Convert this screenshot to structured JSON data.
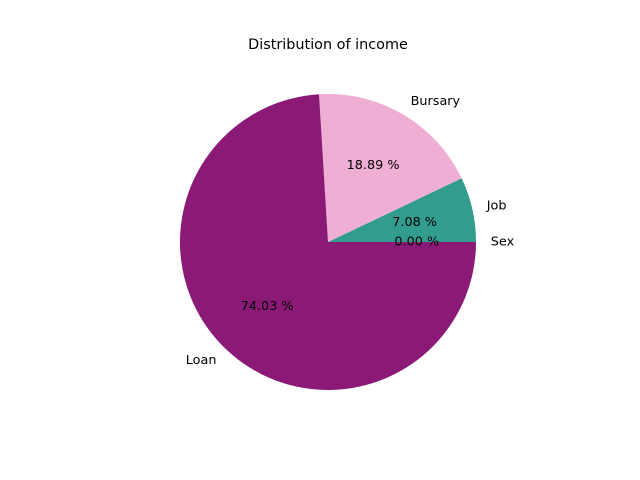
{
  "chart_data": {
    "type": "pie",
    "title": "Distribution of income",
    "slices": [
      {
        "label": "Sex",
        "value": 0.0,
        "pct_label": "0.00 %",
        "color": "#8f2a8f"
      },
      {
        "label": "Job",
        "value": 7.08,
        "pct_label": "7.08 %",
        "color": "#329d8f"
      },
      {
        "label": "Bursary",
        "value": 18.89,
        "pct_label": "18.89 %",
        "color": "#efaed4"
      },
      {
        "label": "Loan",
        "value": 74.03,
        "pct_label": "74.03 %",
        "color": "#8a1a76"
      }
    ],
    "start_angle": 0,
    "direction": "counterclockwise"
  }
}
